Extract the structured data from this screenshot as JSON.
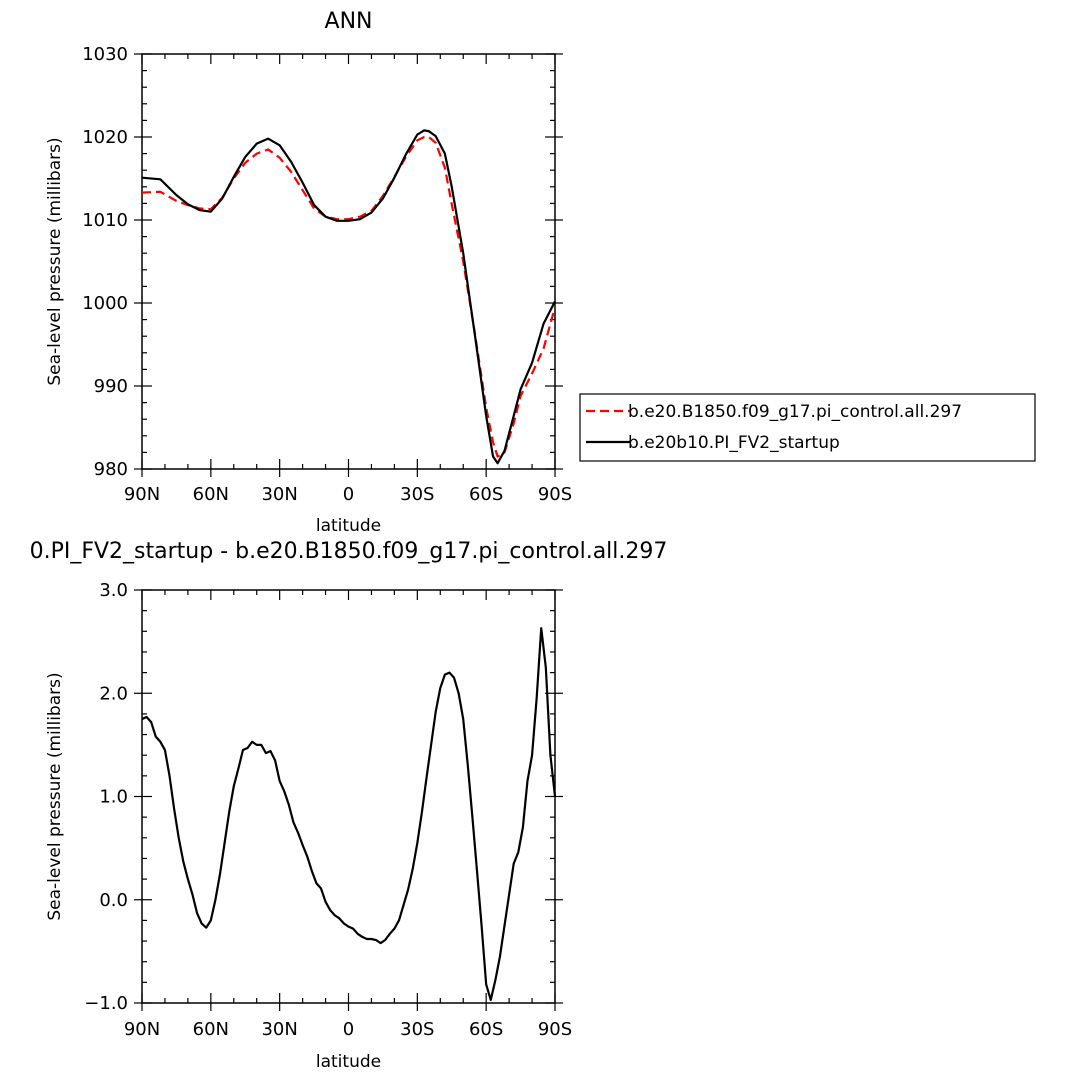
{
  "chart_data": [
    {
      "type": "line",
      "title": "ANN",
      "xlabel": "latitude",
      "ylabel": "Sea-level pressure (millibars)",
      "xtick_labels": [
        "90N",
        "60N",
        "30N",
        "0",
        "30S",
        "60S",
        "90S"
      ],
      "xticks": [
        -90,
        -60,
        -30,
        0,
        30,
        60,
        90
      ],
      "ylim": [
        980,
        1030
      ],
      "yticks": [
        980,
        990,
        1000,
        1010,
        1020,
        1030
      ],
      "ytick_labels": [
        "980",
        "990",
        "1000",
        "1010",
        "1020",
        "1030"
      ],
      "legend_position": "right",
      "series": [
        {
          "name": "b.e20.B1850.f09_g17.pi_control.all.297",
          "color": "#ff0000",
          "dash": "dashed",
          "x": [
            -90,
            -82,
            -75,
            -70,
            -65,
            -60,
            -55,
            -50,
            -45,
            -40,
            -35,
            -30,
            -25,
            -20,
            -15,
            -10,
            -5,
            0,
            5,
            10,
            15,
            20,
            25,
            30,
            33,
            35,
            38,
            42,
            45,
            50,
            55,
            60,
            63,
            65,
            68,
            72,
            75,
            80,
            85,
            90
          ],
          "y": [
            1013.3,
            1013.4,
            1012.3,
            1011.8,
            1011.4,
            1011.3,
            1012.7,
            1015.0,
            1016.9,
            1018.0,
            1018.5,
            1017.5,
            1015.8,
            1013.6,
            1011.4,
            1010.4,
            1010.1,
            1010.1,
            1010.4,
            1011.1,
            1012.9,
            1015.2,
            1017.6,
            1019.6,
            1020.0,
            1020.0,
            1019.3,
            1016.3,
            1011.9,
            1005.0,
            996.5,
            987.4,
            983.2,
            981.5,
            982.0,
            985.5,
            988.8,
            991.5,
            994.5,
            999.5
          ]
        },
        {
          "name": "b.e20b10.PI_FV2_startup",
          "color": "#000000",
          "dash": "solid",
          "x": [
            -90,
            -82,
            -75,
            -70,
            -65,
            -60,
            -55,
            -50,
            -45,
            -40,
            -35,
            -30,
            -25,
            -20,
            -15,
            -10,
            -5,
            0,
            5,
            10,
            15,
            20,
            25,
            30,
            33,
            35,
            38,
            42,
            45,
            50,
            55,
            60,
            63,
            65,
            68,
            72,
            75,
            80,
            85,
            90
          ],
          "y": [
            1015.1,
            1014.9,
            1013.0,
            1011.9,
            1011.2,
            1011.0,
            1012.6,
            1015.2,
            1017.6,
            1019.2,
            1019.8,
            1019.0,
            1017.0,
            1014.5,
            1011.8,
            1010.4,
            1009.9,
            1009.9,
            1010.1,
            1010.9,
            1012.6,
            1015.1,
            1017.9,
            1020.3,
            1020.8,
            1020.7,
            1020.1,
            1018.0,
            1014.0,
            1006.0,
            996.3,
            986.4,
            981.5,
            980.7,
            982.2,
            986.4,
            989.6,
            992.8,
            997.5,
            1000.2
          ]
        }
      ]
    },
    {
      "type": "line",
      "title": "0.PI_FV2_startup - b.e20.B1850.f09_g17.pi_control.all.297",
      "xlabel": "latitude",
      "ylabel": "Sea-level pressure (millibars)",
      "xtick_labels": [
        "90N",
        "60N",
        "30N",
        "0",
        "30S",
        "60S",
        "90S"
      ],
      "xticks": [
        -90,
        -60,
        -30,
        0,
        30,
        60,
        90
      ],
      "ylim": [
        -1.0,
        3.0
      ],
      "yticks": [
        -1.0,
        0.0,
        1.0,
        2.0,
        3.0
      ],
      "ytick_labels": [
        "−1.0",
        "0.0",
        "1.0",
        "2.0",
        "3.0"
      ],
      "series": [
        {
          "color": "#000000",
          "dash": "solid",
          "x": [
            -90,
            -88,
            -86,
            -84,
            -82,
            -80,
            -78,
            -76,
            -74,
            -72,
            -70,
            -68,
            -66,
            -64,
            -62,
            -60,
            -58,
            -56,
            -54,
            -52,
            -50,
            -48,
            -46,
            -44,
            -42,
            -40,
            -38,
            -36,
            -34,
            -32,
            -30,
            -28,
            -26,
            -24,
            -22,
            -20,
            -18,
            -16,
            -14,
            -12,
            -10,
            -8,
            -6,
            -4,
            -2,
            0,
            2,
            4,
            6,
            8,
            10,
            12,
            14,
            16,
            18,
            20,
            22,
            24,
            26,
            28,
            30,
            32,
            34,
            36,
            38,
            40,
            42,
            44,
            46,
            48,
            50,
            52,
            54,
            56,
            58,
            60,
            62,
            64,
            66,
            68,
            70,
            72,
            74,
            76,
            78,
            80,
            82,
            84,
            86,
            88,
            90
          ],
          "y": [
            1.75,
            1.77,
            1.72,
            1.58,
            1.53,
            1.45,
            1.2,
            0.88,
            0.6,
            0.37,
            0.2,
            0.05,
            -0.13,
            -0.23,
            -0.27,
            -0.2,
            0.0,
            0.25,
            0.55,
            0.85,
            1.1,
            1.27,
            1.45,
            1.47,
            1.53,
            1.5,
            1.5,
            1.42,
            1.44,
            1.35,
            1.15,
            1.05,
            0.92,
            0.75,
            0.65,
            0.53,
            0.42,
            0.28,
            0.16,
            0.11,
            -0.02,
            -0.1,
            -0.15,
            -0.18,
            -0.23,
            -0.26,
            -0.28,
            -0.33,
            -0.36,
            -0.38,
            -0.38,
            -0.39,
            -0.42,
            -0.39,
            -0.33,
            -0.28,
            -0.2,
            -0.05,
            0.1,
            0.3,
            0.55,
            0.85,
            1.18,
            1.5,
            1.82,
            2.05,
            2.18,
            2.2,
            2.15,
            2.0,
            1.75,
            1.3,
            0.8,
            0.28,
            -0.25,
            -0.82,
            -0.97,
            -0.78,
            -0.55,
            -0.25,
            0.05,
            0.35,
            0.46,
            0.7,
            1.15,
            1.4,
            1.95,
            2.63,
            2.25,
            1.4,
            1.0
          ]
        }
      ]
    }
  ]
}
